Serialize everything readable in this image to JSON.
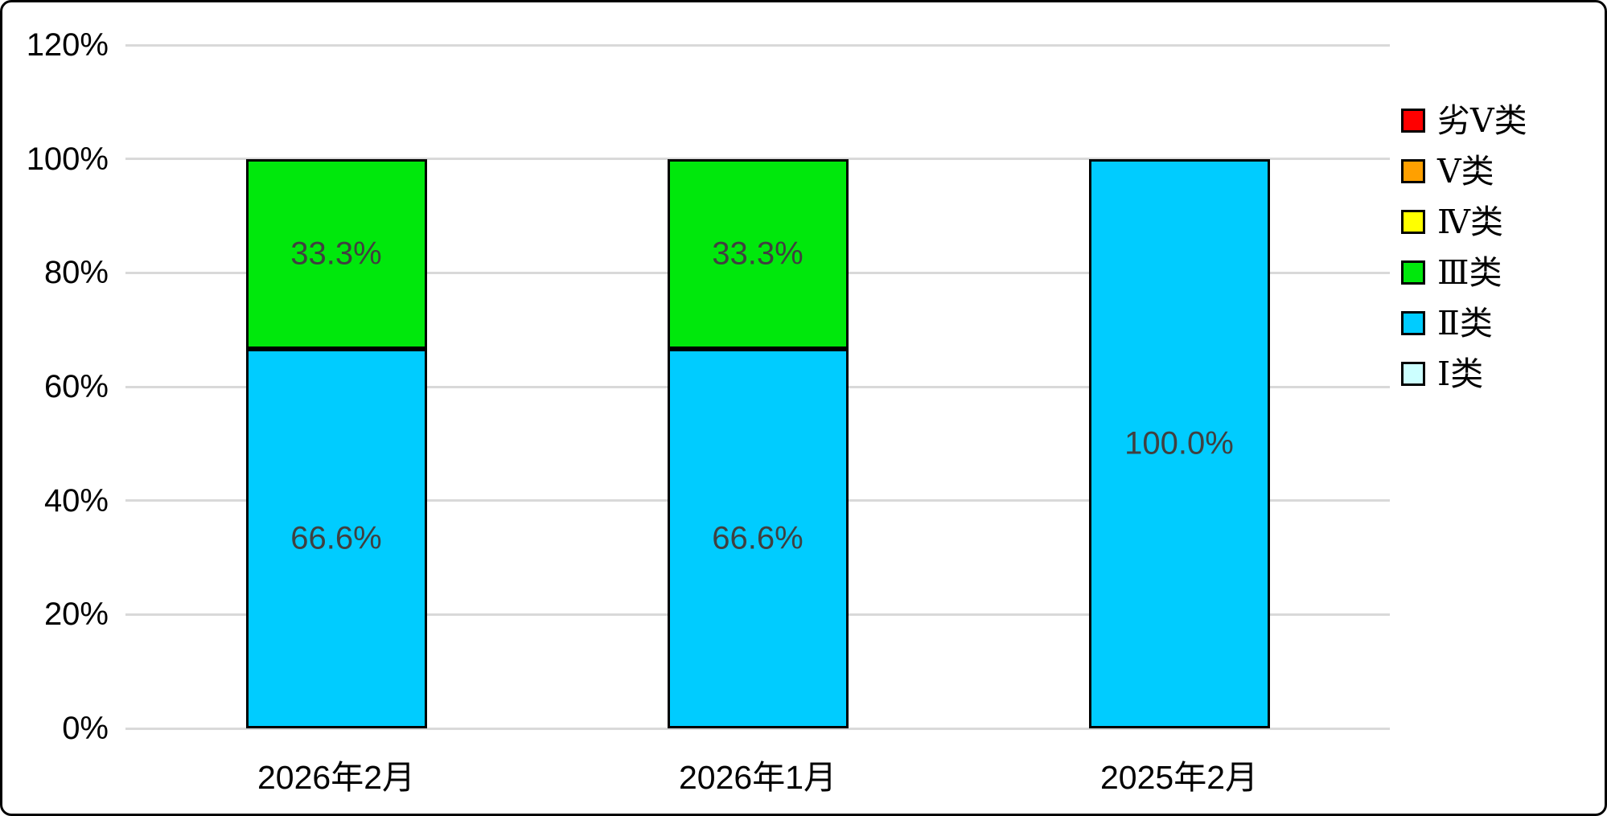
{
  "colors": {
    "background": "#FFFFFF",
    "frame_border": "#000000",
    "gridline": "#D9D9D9",
    "bar_border": "#000000",
    "data_label": "#404040",
    "axis_text": "#000000"
  },
  "chart_data": {
    "type": "bar",
    "stacked": true,
    "orientation": "vertical",
    "categories": [
      "2026年2月",
      "2026年1月",
      "2025年2月"
    ],
    "series": [
      {
        "name": "Ⅰ类",
        "color": "#CCFFFF",
        "values": [
          0,
          0,
          0
        ]
      },
      {
        "name": "Ⅱ类",
        "color": "#00CCFF",
        "values": [
          66.6,
          66.6,
          100.0
        ]
      },
      {
        "name": "Ⅲ类",
        "color": "#00E80C",
        "values": [
          33.3,
          33.3,
          0
        ]
      },
      {
        "name": "Ⅳ类",
        "color": "#FFFF00",
        "values": [
          0,
          0,
          0
        ]
      },
      {
        "name": "Ⅴ类",
        "color": "#FFA000",
        "values": [
          0,
          0,
          0
        ]
      },
      {
        "name": "劣Ⅴ类",
        "color": "#FF0000",
        "values": [
          0,
          0,
          0
        ]
      }
    ],
    "data_labels": {
      "visible": [
        [
          "66.6%",
          "33.3%"
        ],
        [
          "66.6%",
          "33.3%"
        ],
        [
          "100.0%"
        ]
      ],
      "color": "#404040"
    },
    "y_axis": {
      "min": 0,
      "max": 120,
      "step": 20,
      "tick_labels": [
        "0%",
        "20%",
        "40%",
        "60%",
        "80%",
        "100%",
        "120%"
      ]
    },
    "legend": {
      "position": "right",
      "order_top_to_bottom": [
        "劣Ⅴ类",
        "Ⅴ类",
        "Ⅳ类",
        "Ⅲ类",
        "Ⅱ类",
        "Ⅰ类"
      ]
    },
    "grid": true,
    "title": ""
  }
}
